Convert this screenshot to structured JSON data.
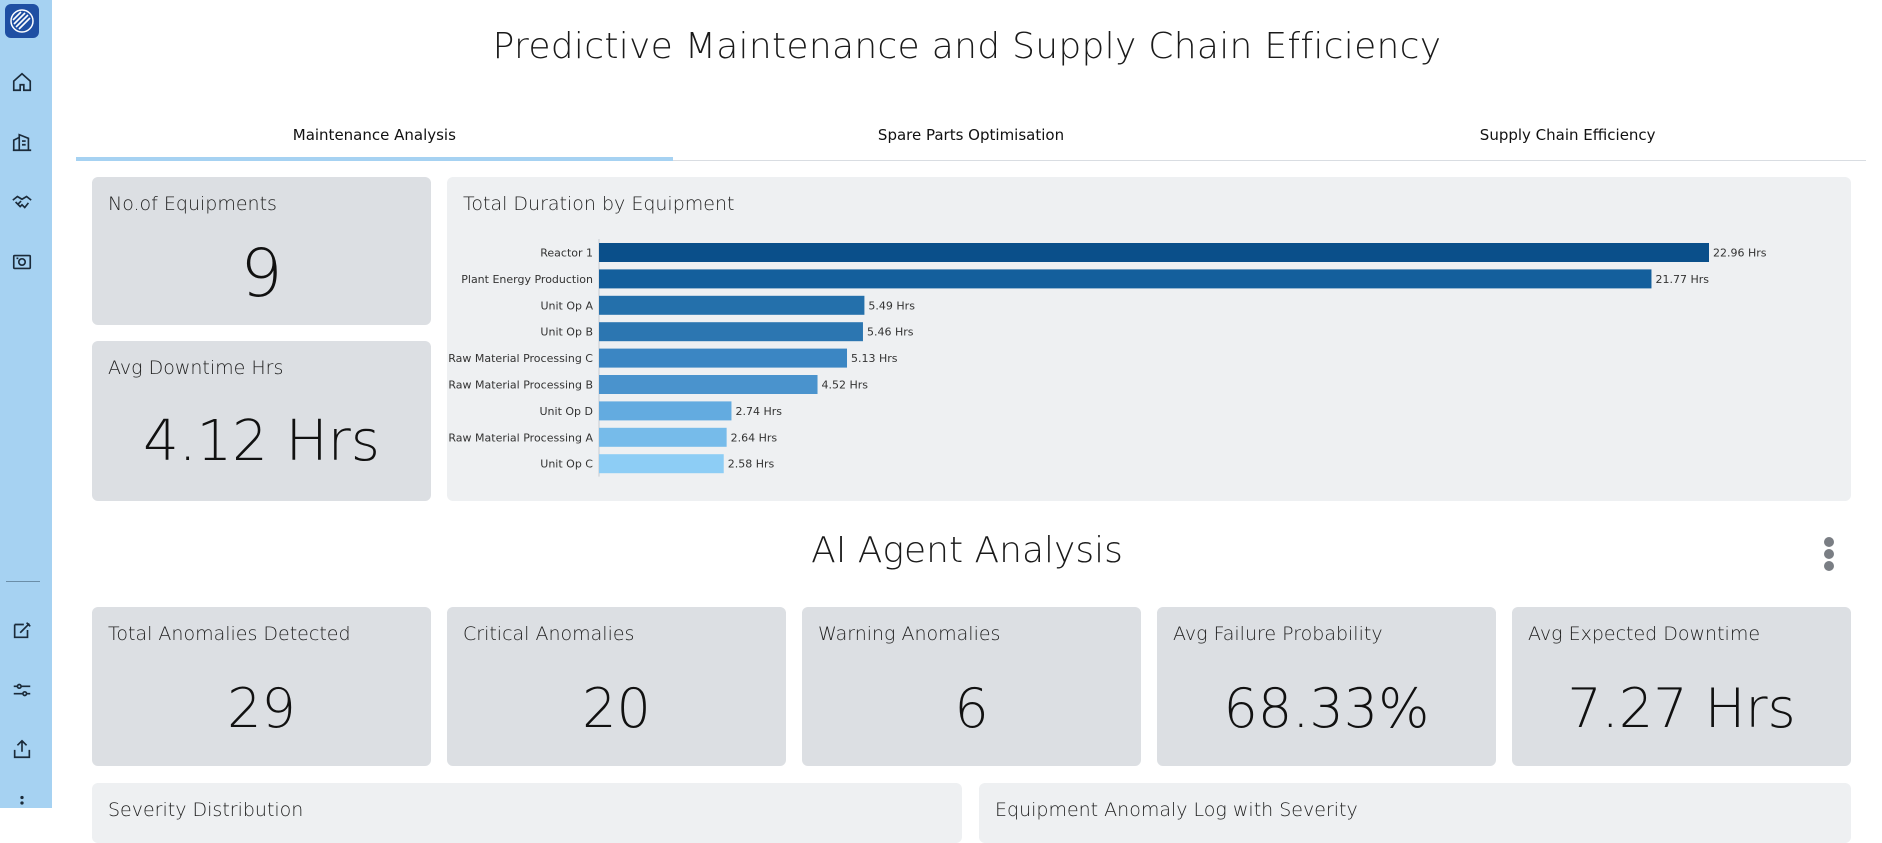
{
  "sidebar": {
    "icons": [
      "home-icon",
      "buildings-icon",
      "handshake-icon",
      "camera-icon",
      "edit-icon",
      "sliders-icon",
      "share-icon",
      "more-icon"
    ]
  },
  "header": {
    "title": "Predictive Maintenance and Supply Chain Efficiency"
  },
  "tabs": [
    {
      "label": "Maintenance Analysis",
      "active": true
    },
    {
      "label": "Spare Parts Optimisation",
      "active": false
    },
    {
      "label": "Supply Chain Efficiency",
      "active": false
    }
  ],
  "kpis": {
    "equipments": {
      "title": "No.of Equipments",
      "value": "9"
    },
    "downtime": {
      "title": "Avg Downtime Hrs",
      "value": "4.12 Hrs"
    }
  },
  "chart_data": {
    "type": "bar",
    "orientation": "horizontal",
    "title": "Total Duration by Equipment",
    "categories": [
      "Reactor 1",
      "Plant Energy Production",
      "Unit Op A",
      "Unit Op B",
      "Raw Material Processing C",
      "Raw Material Processing B",
      "Unit Op D",
      "Raw Material Processing A",
      "Unit Op C"
    ],
    "values": [
      22.96,
      21.77,
      5.49,
      5.46,
      5.13,
      4.52,
      2.74,
      2.64,
      2.58
    ],
    "data_labels": [
      "22.96 Hrs",
      "21.77 Hrs",
      "5.49 Hrs",
      "5.46 Hrs",
      "5.13 Hrs",
      "4.52 Hrs",
      "2.74 Hrs",
      "2.64 Hrs",
      "2.58 Hrs"
    ],
    "colors": [
      "#0a4f8a",
      "#145f9c",
      "#2470ab",
      "#2c76b1",
      "#3b86c3",
      "#4a93cd",
      "#63abe0",
      "#76bbea",
      "#8dcdf5"
    ],
    "xlim": [
      0,
      22.96
    ],
    "grid": false
  },
  "ai_section": {
    "title": "AI Agent Analysis",
    "kpis": [
      {
        "title": "Total Anomalies Detected",
        "value": "29"
      },
      {
        "title": "Critical Anomalies",
        "value": "20"
      },
      {
        "title": "Warning Anomalies",
        "value": "6"
      },
      {
        "title": "Avg Failure Probability",
        "value": "68.33%"
      },
      {
        "title": "Avg Expected Downtime",
        "value": "7.27 Hrs"
      }
    ]
  },
  "bottom_cards": {
    "severity": {
      "title": "Severity Distribution"
    },
    "anomaly_log": {
      "title": "Equipment Anomaly Log with Severity"
    }
  }
}
